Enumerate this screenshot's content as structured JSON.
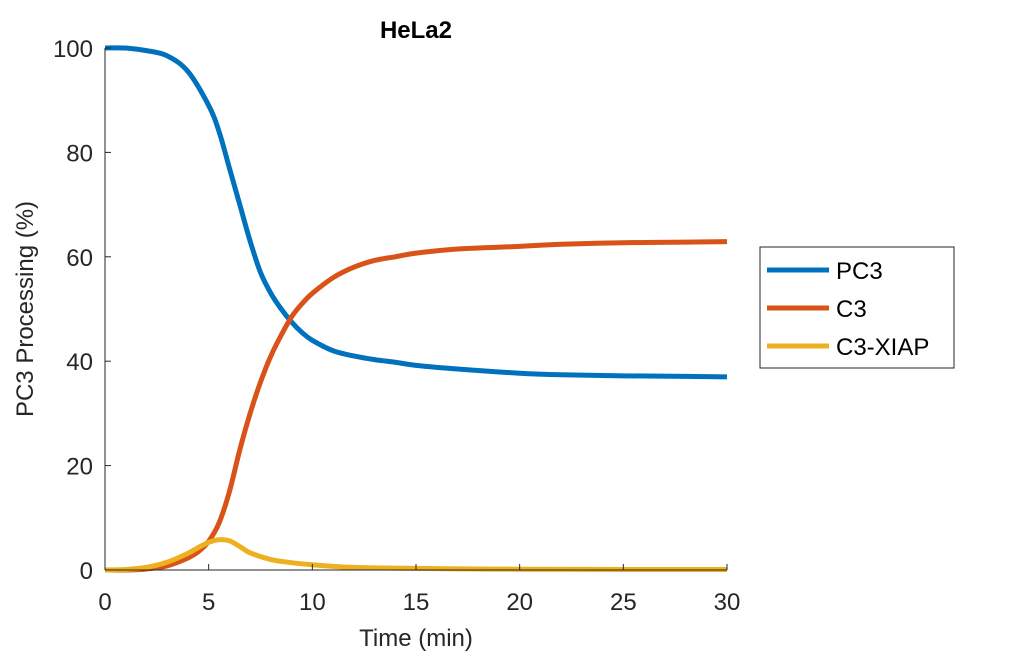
{
  "chart_data": {
    "type": "line",
    "title": "HeLa2",
    "xlabel": "Time (min)",
    "ylabel": "PC3 Processing (%)",
    "xlim": [
      0,
      30
    ],
    "ylim": [
      0,
      100
    ],
    "xticks": [
      "0",
      "5",
      "10",
      "15",
      "20",
      "25",
      "30"
    ],
    "yticks": [
      "0",
      "20",
      "40",
      "60",
      "80",
      "100"
    ],
    "grid": false,
    "legend_position": "right",
    "series": [
      {
        "name": "PC3",
        "color": "#0072BD",
        "x": [
          0,
          1,
          2,
          3,
          4,
          5,
          5.5,
          6,
          6.5,
          7,
          7.5,
          8,
          8.5,
          9,
          9.5,
          10,
          11,
          12,
          13,
          14,
          15,
          17,
          20,
          22,
          25,
          28,
          30
        ],
        "y": [
          100,
          100,
          99.5,
          98.5,
          95.5,
          89,
          84,
          77,
          70,
          63,
          57,
          53,
          50,
          47.5,
          45.5,
          44,
          42,
          41,
          40.3,
          39.8,
          39.2,
          38.5,
          37.7,
          37.4,
          37.2,
          37.1,
          37
        ]
      },
      {
        "name": "C3",
        "color": "#D95319",
        "x": [
          0,
          1,
          2,
          3,
          4,
          4.5,
          5,
          5.5,
          6,
          6.5,
          7,
          7.5,
          8,
          8.5,
          9,
          9.5,
          10,
          11,
          12,
          13,
          14,
          15,
          17,
          20,
          22,
          25,
          28,
          30
        ],
        "y": [
          0,
          0,
          0.2,
          0.8,
          2.3,
          3.5,
          5.5,
          9,
          15,
          23,
          30,
          36,
          41,
          45,
          48.5,
          51,
          53,
          56,
          58,
          59.3,
          60,
          60.7,
          61.5,
          62,
          62.4,
          62.7,
          62.8,
          62.9
        ]
      },
      {
        "name": "C3-XIAP",
        "color": "#EDB120",
        "x": [
          0,
          1,
          2,
          3,
          4,
          4.5,
          5,
          5.5,
          6,
          6.5,
          7,
          8,
          9,
          10,
          11,
          12,
          13,
          15,
          18,
          20,
          25,
          30
        ],
        "y": [
          0,
          0.1,
          0.5,
          1.5,
          3.2,
          4.3,
          5.3,
          5.8,
          5.6,
          4.5,
          3.3,
          2,
          1.4,
          1,
          0.7,
          0.5,
          0.4,
          0.3,
          0.2,
          0.15,
          0.1,
          0.1
        ]
      }
    ]
  }
}
